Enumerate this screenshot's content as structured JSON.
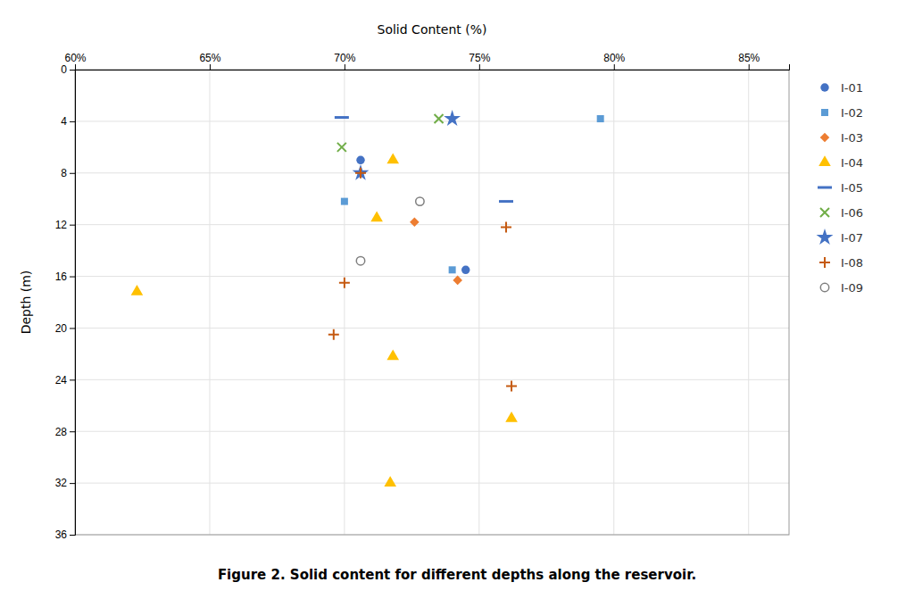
{
  "chart_data": {
    "type": "scatter",
    "title": "Figure 2. Solid content for different depths along the reservoir.",
    "x_label": "Solid Content (%)",
    "y_label": "Depth (m)",
    "xlim": [
      0.6,
      0.865
    ],
    "ylim": [
      36,
      0
    ],
    "xticks": [
      {
        "value": 0.6,
        "label": "60%"
      },
      {
        "value": 0.65,
        "label": "65%"
      },
      {
        "value": 0.7,
        "label": "70%"
      },
      {
        "value": 0.75,
        "label": "75%"
      },
      {
        "value": 0.8,
        "label": "80%"
      },
      {
        "value": 0.85,
        "label": "85%"
      }
    ],
    "yticks": [
      0,
      4,
      8,
      12,
      16,
      20,
      24,
      28,
      32,
      36
    ],
    "grid": true,
    "legend": "right",
    "series": [
      {
        "name": "I-01",
        "color": "#4472C4",
        "marker": "circle",
        "x": [
          0.706,
          0.745
        ],
        "values": [
          7.0,
          15.5
        ]
      },
      {
        "name": "I-02",
        "color": "#5B9BD5",
        "marker": "square",
        "x": [
          0.795,
          0.7,
          0.74
        ],
        "values": [
          3.8,
          10.2,
          15.5
        ]
      },
      {
        "name": "I-03",
        "color": "#ED7D31",
        "marker": "diamond",
        "x": [
          0.726,
          0.742
        ],
        "values": [
          11.8,
          16.3
        ]
      },
      {
        "name": "I-04",
        "color": "#FFC000",
        "marker": "triangle",
        "x": [
          0.623,
          0.718,
          0.712,
          0.718,
          0.717,
          0.762
        ],
        "values": [
          17.2,
          7.0,
          11.5,
          22.2,
          32.0,
          27.0
        ]
      },
      {
        "name": "I-05",
        "color": "#4472C4",
        "marker": "hline",
        "x": [
          0.699,
          0.76
        ],
        "values": [
          3.7,
          10.2
        ]
      },
      {
        "name": "I-06",
        "color": "#70AD47",
        "marker": "x",
        "x": [
          0.699,
          0.735
        ],
        "values": [
          6.0,
          3.8
        ]
      },
      {
        "name": "I-07",
        "color": "#4472C4",
        "marker": "star",
        "x": [
          0.74,
          0.706
        ],
        "values": [
          3.8,
          8.0
        ]
      },
      {
        "name": "I-08",
        "color": "#C55A11",
        "marker": "plus",
        "x": [
          0.706,
          0.7,
          0.696,
          0.76,
          0.762
        ],
        "values": [
          8.0,
          16.5,
          20.5,
          12.2,
          24.5
        ]
      },
      {
        "name": "I-09",
        "color": "#7F7F7F",
        "marker": "open-circle",
        "x": [
          0.728,
          0.706
        ],
        "values": [
          10.2,
          14.8
        ]
      }
    ]
  }
}
